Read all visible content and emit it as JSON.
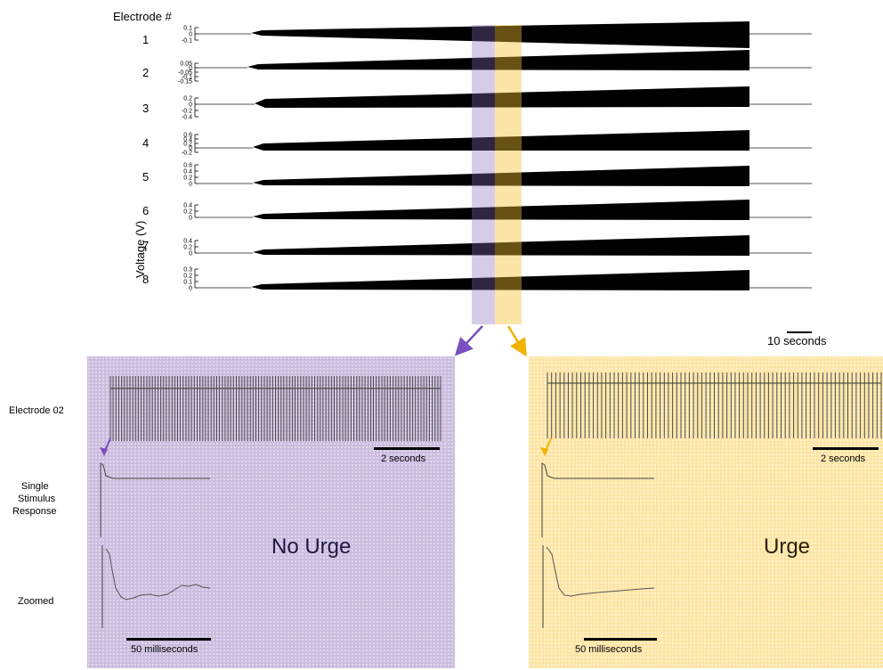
{
  "top": {
    "heading": "Electrode #",
    "y_axis_label": "Voltage (V)",
    "scale_bar_label": "10 seconds",
    "electrodes": [
      {
        "label": "1",
        "ticks": [
          "0.1",
          "0",
          "-0.1"
        ]
      },
      {
        "label": "2",
        "ticks": [
          "0.05",
          "0",
          "-0.05",
          "-0.1",
          "-0.15"
        ]
      },
      {
        "label": "3",
        "ticks": [
          "0.2",
          "0",
          "-0.2",
          "-0.4"
        ]
      },
      {
        "label": "4",
        "ticks": [
          "0.6",
          "0.4",
          "0.2",
          "0",
          "-0.2"
        ]
      },
      {
        "label": "5",
        "ticks": [
          "0.6",
          "0.4",
          "0.2",
          "0"
        ]
      },
      {
        "label": "6",
        "ticks": [
          "0.4",
          "0.2",
          "0"
        ]
      },
      {
        "label": "7",
        "ticks": [
          "0.4",
          "0.2",
          "0"
        ]
      },
      {
        "label": "8",
        "ticks": [
          "0.3",
          "0.2",
          "0.1",
          "0"
        ]
      }
    ],
    "highlight_colors": {
      "no_urge": "#8a6cc4",
      "urge": "#f5c232"
    }
  },
  "side_labels": {
    "electrode": "Electrode 02",
    "single_line1": "Single",
    "single_line2": "Stimulus",
    "single_line3": "Response",
    "zoomed": "Zoomed"
  },
  "panels": {
    "no_urge": {
      "title": "No Urge",
      "scale_top": "2 seconds",
      "scale_bottom": "50 milliseconds",
      "color": "#ccbde0",
      "arrow_color": "#7a4fc0"
    },
    "urge": {
      "title": "Urge",
      "scale_top": "2 seconds",
      "scale_bottom": "50 milliseconds",
      "color": "#fde5a6",
      "arrow_color": "#f2b200"
    }
  }
}
